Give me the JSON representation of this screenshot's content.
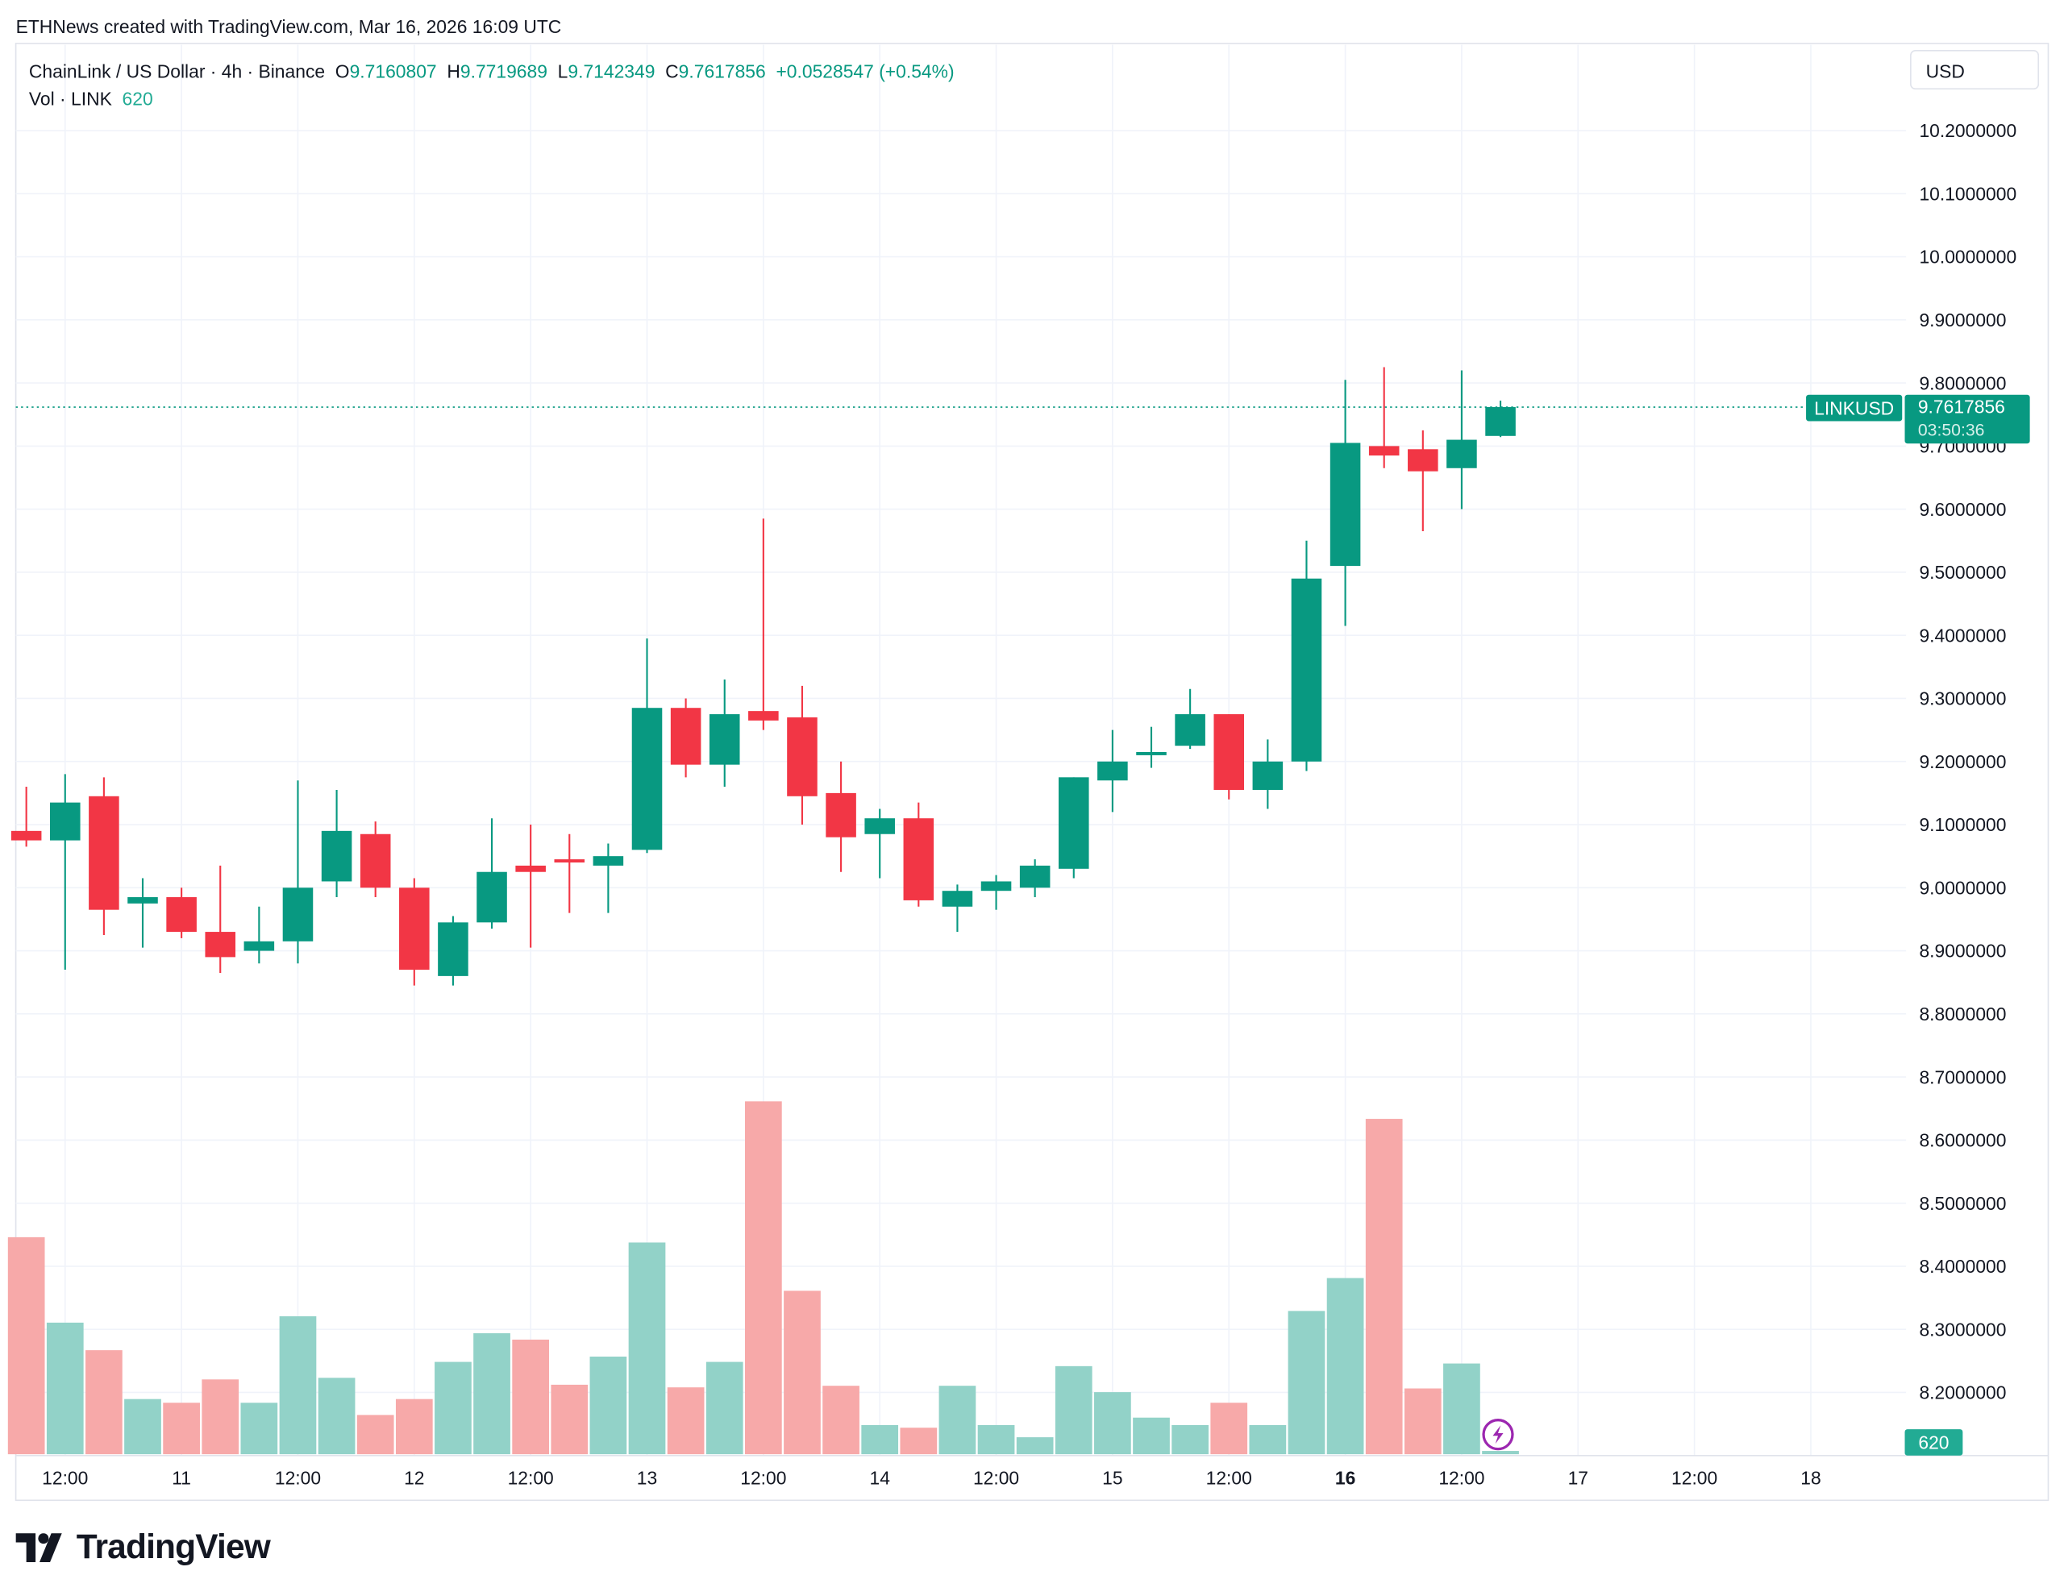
{
  "caption": "ETHNews created with TradingView.com, Mar 16, 2026 16:09 UTC",
  "legend": {
    "symbol": "ChainLink / US Dollar · 4h · Binance",
    "o_label": "O",
    "o": "9.7160807",
    "h_label": "H",
    "h": "9.7719689",
    "l_label": "L",
    "l": "9.7142349",
    "c_label": "C",
    "c": "9.7617856",
    "change": "+0.0528547 (+0.54%)",
    "vol_label": "Vol · LINK",
    "vol": "620"
  },
  "currency_button": "USD",
  "last_price_tag": {
    "symbol": "LINKUSD",
    "price": "9.7617856",
    "countdown": "03:50:36"
  },
  "volume_tag": "620",
  "logo_text": "TradingView",
  "colors": {
    "up": "#089981",
    "down": "#f23645",
    "vol_up": "#92d2c8",
    "vol_down": "#f7a9a9",
    "grid": "#f0f3fa",
    "alert_icon": "#9c27b0"
  },
  "icons": {
    "alert": "lightning-bolt-icon"
  },
  "chart_data": {
    "type": "candlestick",
    "interval": "4h",
    "ylim": [
      8.1,
      10.25
    ],
    "grid": true,
    "y_ticks": [
      "10.2000000",
      "10.1000000",
      "10.0000000",
      "9.9000000",
      "9.8000000",
      "9.7000000",
      "9.6000000",
      "9.5000000",
      "9.4000000",
      "9.3000000",
      "9.2000000",
      "9.1000000",
      "9.0000000",
      "8.9000000",
      "8.8000000",
      "8.7000000",
      "8.6000000",
      "8.5000000",
      "8.4000000",
      "8.3000000",
      "8.2000000"
    ],
    "x_ticks": [
      {
        "label": "12:00",
        "bold": false
      },
      {
        "label": "11",
        "bold": false
      },
      {
        "label": "12:00",
        "bold": false
      },
      {
        "label": "12",
        "bold": false
      },
      {
        "label": "12:00",
        "bold": false
      },
      {
        "label": "13",
        "bold": false
      },
      {
        "label": "12:00",
        "bold": false
      },
      {
        "label": "14",
        "bold": false
      },
      {
        "label": "12:00",
        "bold": false
      },
      {
        "label": "15",
        "bold": false
      },
      {
        "label": "12:00",
        "bold": false
      },
      {
        "label": "16",
        "bold": true
      },
      {
        "label": "12:00",
        "bold": false
      },
      {
        "label": "17",
        "bold": false
      },
      {
        "label": "12:00",
        "bold": false
      },
      {
        "label": "18",
        "bold": false
      }
    ],
    "first_candle": "Mar 10 08:00",
    "last_price": 9.7617856,
    "candles": [
      [
        9.09,
        9.16,
        9.065,
        9.075,
        40900
      ],
      [
        9.075,
        9.18,
        8.87,
        9.135,
        24800
      ],
      [
        9.145,
        9.175,
        8.925,
        8.965,
        19600
      ],
      [
        8.975,
        9.015,
        8.905,
        8.985,
        10400
      ],
      [
        8.985,
        9.0,
        8.92,
        8.93,
        9700
      ],
      [
        8.93,
        9.035,
        8.865,
        8.89,
        14100
      ],
      [
        8.9,
        8.97,
        8.88,
        8.915,
        9700
      ],
      [
        8.915,
        9.17,
        8.88,
        9.0,
        26000
      ],
      [
        9.01,
        9.155,
        8.985,
        9.09,
        14400
      ],
      [
        9.085,
        9.105,
        8.985,
        9.0,
        7400
      ],
      [
        9.0,
        9.015,
        8.845,
        8.87,
        10400
      ],
      [
        8.86,
        8.955,
        8.845,
        8.945,
        17400
      ],
      [
        8.945,
        9.11,
        8.935,
        9.025,
        22800
      ],
      [
        9.035,
        9.1,
        8.905,
        9.025,
        21600
      ],
      [
        9.045,
        9.085,
        8.96,
        9.04,
        13100
      ],
      [
        9.035,
        9.07,
        8.96,
        9.05,
        18400
      ],
      [
        9.06,
        9.395,
        9.055,
        9.285,
        39900
      ],
      [
        9.285,
        9.3,
        9.175,
        9.195,
        12600
      ],
      [
        9.195,
        9.33,
        9.16,
        9.275,
        17400
      ],
      [
        9.28,
        9.585,
        9.25,
        9.265,
        66500
      ],
      [
        9.27,
        9.32,
        9.1,
        9.145,
        30800
      ],
      [
        9.15,
        9.2,
        9.025,
        9.08,
        12900
      ],
      [
        9.085,
        9.125,
        9.015,
        9.11,
        5500
      ],
      [
        9.11,
        9.135,
        8.97,
        8.98,
        5000
      ],
      [
        8.97,
        9.005,
        8.93,
        8.995,
        12900
      ],
      [
        8.995,
        9.02,
        8.965,
        9.01,
        5500
      ],
      [
        9.0,
        9.045,
        8.985,
        9.035,
        3200
      ],
      [
        9.03,
        9.175,
        9.015,
        9.175,
        16600
      ],
      [
        9.17,
        9.25,
        9.12,
        9.2,
        11700
      ],
      [
        9.21,
        9.255,
        9.19,
        9.215,
        6900
      ],
      [
        9.225,
        9.315,
        9.22,
        9.275,
        5500
      ],
      [
        9.275,
        9.275,
        9.14,
        9.155,
        9700
      ],
      [
        9.155,
        9.235,
        9.125,
        9.2,
        5500
      ],
      [
        9.2,
        9.55,
        9.185,
        9.49,
        27000
      ],
      [
        9.51,
        9.805,
        9.415,
        9.705,
        33200
      ],
      [
        9.7,
        9.825,
        9.665,
        9.685,
        63200
      ],
      [
        9.695,
        9.725,
        9.565,
        9.66,
        12400
      ],
      [
        9.665,
        9.82,
        9.6,
        9.71,
        17100
      ],
      [
        9.7160807,
        9.7719689,
        9.7142349,
        9.7617856,
        620
      ]
    ],
    "candle_fields": [
      "open",
      "high",
      "low",
      "close",
      "volume"
    ]
  }
}
